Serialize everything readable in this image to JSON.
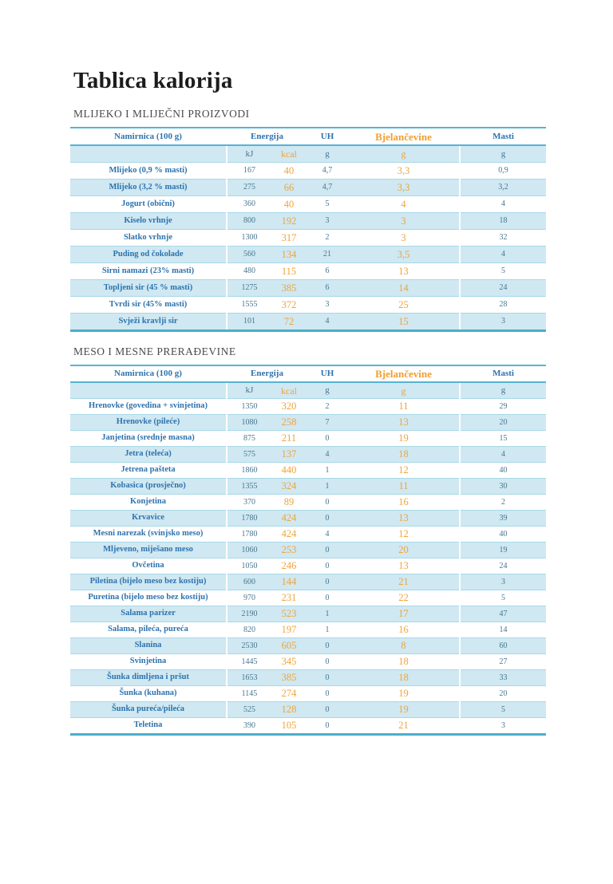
{
  "page": {
    "title": "Tablica kalorija"
  },
  "columns": {
    "food": "Namirnica (100 g)",
    "energy": "Energija",
    "uh": "UH",
    "protein": "Bjelančevine",
    "fat": "Masti",
    "unit_kj": "kJ",
    "unit_kcal": "kcal",
    "unit_g": "g"
  },
  "colors": {
    "label_blue": "#2d73ae",
    "value_gray_blue": "#47768f",
    "accent_orange": "#f0a43c",
    "row_shade": "#cfe8f2",
    "border_blue": "#55b4d3",
    "table_bottom_border": "#49aecb"
  },
  "tables": [
    {
      "section": "MLIJEKO I MLIJEČNI PROIZVODI",
      "rows": [
        {
          "name": "Mlijeko (0,9 % masti)",
          "kj": "167",
          "kcal": "40",
          "uh": "4,7",
          "protein": "3,3",
          "fat": "0,9"
        },
        {
          "name": "Mlijeko (3,2 % masti)",
          "kj": "275",
          "kcal": "66",
          "uh": "4,7",
          "protein": "3,3",
          "fat": "3,2"
        },
        {
          "name": "Jogurt (obični)",
          "kj": "360",
          "kcal": "40",
          "uh": "5",
          "protein": "4",
          "fat": "4"
        },
        {
          "name": "Kiselo vrhnje",
          "kj": "800",
          "kcal": "192",
          "uh": "3",
          "protein": "3",
          "fat": "18"
        },
        {
          "name": "Slatko vrhnje",
          "kj": "1300",
          "kcal": "317",
          "uh": "2",
          "protein": "3",
          "fat": "32"
        },
        {
          "name": "Puding od čokolade",
          "kj": "560",
          "kcal": "134",
          "uh": "21",
          "protein": "3,5",
          "fat": "4"
        },
        {
          "name": "Sirni namazi (23% masti)",
          "kj": "480",
          "kcal": "115",
          "uh": "6",
          "protein": "13",
          "fat": "5"
        },
        {
          "name": "Topljeni sir (45 % masti)",
          "kj": "1275",
          "kcal": "385",
          "uh": "6",
          "protein": "14",
          "fat": "24"
        },
        {
          "name": "Tvrdi sir (45% masti)",
          "kj": "1555",
          "kcal": "372",
          "uh": "3",
          "protein": "25",
          "fat": "28"
        },
        {
          "name": "Svježi kravlji sir",
          "kj": "101",
          "kcal": "72",
          "uh": "4",
          "protein": "15",
          "fat": "3"
        }
      ]
    },
    {
      "section": "MESO I MESNE PRERAĐEVINE",
      "rows": [
        {
          "name": "Hrenovke (govedina + svinjetina)",
          "kj": "1350",
          "kcal": "320",
          "uh": "2",
          "protein": "11",
          "fat": "29"
        },
        {
          "name": "Hrenovke (pileće)",
          "kj": "1080",
          "kcal": "258",
          "uh": "7",
          "protein": "13",
          "fat": "20"
        },
        {
          "name": "Janjetina (srednje masna)",
          "kj": "875",
          "kcal": "211",
          "uh": "0",
          "protein": "19",
          "fat": "15"
        },
        {
          "name": "Jetra (teleća)",
          "kj": "575",
          "kcal": "137",
          "uh": "4",
          "protein": "18",
          "fat": "4"
        },
        {
          "name": "Jetrena pašteta",
          "kj": "1860",
          "kcal": "440",
          "uh": "1",
          "protein": "12",
          "fat": "40"
        },
        {
          "name": "Kobasica (prosječno)",
          "kj": "1355",
          "kcal": "324",
          "uh": "1",
          "protein": "11",
          "fat": "30"
        },
        {
          "name": "Konjetina",
          "kj": "370",
          "kcal": "89",
          "uh": "0",
          "protein": "16",
          "fat": "2"
        },
        {
          "name": "Krvavice",
          "kj": "1780",
          "kcal": "424",
          "uh": "0",
          "protein": "13",
          "fat": "39"
        },
        {
          "name": "Mesni narezak (svinjsko meso)",
          "kj": "1780",
          "kcal": "424",
          "uh": "4",
          "protein": "12",
          "fat": "40"
        },
        {
          "name": "Mljeveno, miješano meso",
          "kj": "1060",
          "kcal": "253",
          "uh": "0",
          "protein": "20",
          "fat": "19"
        },
        {
          "name": "Ovčetina",
          "kj": "1050",
          "kcal": "246",
          "uh": "0",
          "protein": "13",
          "fat": "24"
        },
        {
          "name": "Piletina (bijelo meso bez kostiju)",
          "kj": "600",
          "kcal": "144",
          "uh": "0",
          "protein": "21",
          "fat": "3"
        },
        {
          "name": "Puretina (bijelo meso bez kostiju)",
          "kj": "970",
          "kcal": "231",
          "uh": "0",
          "protein": "22",
          "fat": "5"
        },
        {
          "name": "Salama parizer",
          "kj": "2190",
          "kcal": "523",
          "uh": "1",
          "protein": "17",
          "fat": "47"
        },
        {
          "name": "Salama, pileća, pureća",
          "kj": "820",
          "kcal": "197",
          "uh": "1",
          "protein": "16",
          "fat": "14"
        },
        {
          "name": "Slanina",
          "kj": "2530",
          "kcal": "605",
          "uh": "0",
          "protein": "8",
          "fat": "60"
        },
        {
          "name": "Svinjetina",
          "kj": "1445",
          "kcal": "345",
          "uh": "0",
          "protein": "18",
          "fat": "27"
        },
        {
          "name": "Šunka dimljena i pršut",
          "kj": "1653",
          "kcal": "385",
          "uh": "0",
          "protein": "18",
          "fat": "33"
        },
        {
          "name": "Šunka (kuhana)",
          "kj": "1145",
          "kcal": "274",
          "uh": "0",
          "protein": "19",
          "fat": "20"
        },
        {
          "name": "Šunka pureća/pileća",
          "kj": "525",
          "kcal": "128",
          "uh": "0",
          "protein": "19",
          "fat": "5"
        },
        {
          "name": "Teletina",
          "kj": "390",
          "kcal": "105",
          "uh": "0",
          "protein": "21",
          "fat": "3"
        }
      ]
    }
  ]
}
